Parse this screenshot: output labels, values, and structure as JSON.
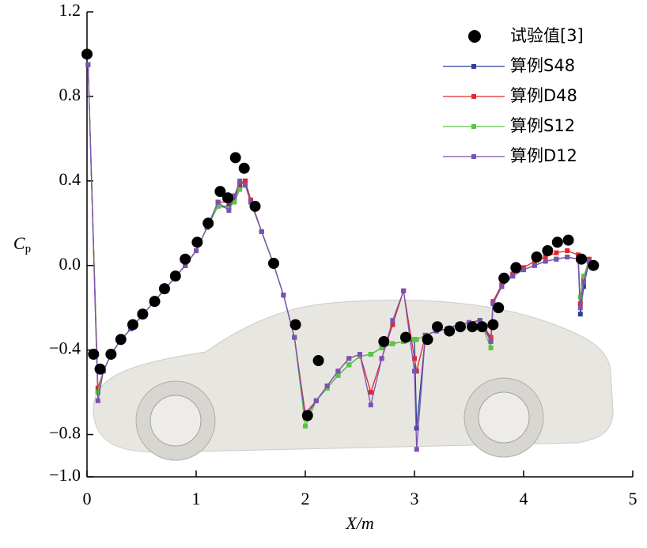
{
  "chart_data": {
    "type": "line",
    "xlabel": "X/m",
    "ylabel": {
      "text": "C",
      "subscript": "p"
    },
    "xlim": [
      0,
      5
    ],
    "xticks": [
      0,
      1,
      2,
      3,
      4,
      5
    ],
    "ylim": [
      -1.0,
      1.2
    ],
    "yticks": [
      {
        "value": -1.0,
        "label": "−1.0"
      },
      {
        "value": -0.8,
        "label": "−0.8"
      },
      {
        "value": -0.4,
        "label": "−0.4"
      },
      {
        "value": 0,
        "label": "0.0"
      },
      0.4,
      0.8,
      1.2
    ],
    "legend": "upper right",
    "experiment": {
      "name": "试验值[3]",
      "color": "#000000",
      "x": [
        0,
        0.06,
        0.12,
        0.22,
        0.31,
        0.42,
        0.51,
        0.62,
        0.71,
        0.81,
        0.9,
        1.01,
        1.11,
        1.22,
        1.29,
        1.36,
        1.44,
        1.54,
        1.71,
        1.91,
        2.02,
        2.12,
        2.72,
        2.92,
        3.12,
        3.21,
        3.32,
        3.42,
        3.53,
        3.62,
        3.72,
        3.77,
        3.82,
        3.93,
        4.12,
        4.22,
        4.31,
        4.41,
        4.53,
        4.64
      ],
      "values": [
        1.0,
        -0.42,
        -0.49,
        -0.42,
        -0.35,
        -0.28,
        -0.23,
        -0.17,
        -0.11,
        -0.05,
        0.03,
        0.11,
        0.2,
        0.35,
        0.32,
        0.51,
        0.46,
        0.28,
        0.01,
        -0.28,
        -0.71,
        -0.45,
        -0.36,
        -0.34,
        -0.35,
        -0.29,
        -0.31,
        -0.29,
        -0.29,
        -0.29,
        -0.28,
        -0.2,
        -0.06,
        -0.01,
        0.04,
        0.07,
        0.11,
        0.12,
        0.03,
        0.0
      ]
    },
    "x": [
      0.01,
      0.1,
      0.15,
      0.22,
      0.3,
      0.4,
      0.5,
      0.6,
      0.7,
      0.8,
      0.9,
      1.0,
      1.1,
      1.2,
      1.3,
      1.35,
      1.4,
      1.45,
      1.5,
      1.6,
      1.7,
      1.8,
      1.9,
      2.0,
      2.1,
      2.2,
      2.3,
      2.4,
      2.5,
      2.6,
      2.7,
      2.8,
      2.9,
      3.0,
      3.02,
      3.1,
      3.2,
      3.3,
      3.4,
      3.5,
      3.6,
      3.7,
      3.72,
      3.8,
      3.9,
      4.0,
      4.1,
      4.2,
      4.3,
      4.4,
      4.5,
      4.52,
      4.55,
      4.6,
      4.62
    ],
    "series": [
      {
        "name": "算例S48",
        "color": "#2b3f96",
        "values": [
          0.95,
          -0.6,
          -0.5,
          -0.42,
          -0.36,
          -0.3,
          -0.24,
          -0.18,
          -0.12,
          -0.06,
          0.0,
          0.07,
          0.18,
          0.28,
          0.28,
          0.31,
          0.38,
          0.4,
          0.31,
          0.16,
          0.02,
          -0.14,
          -0.34,
          -0.72,
          -0.64,
          -0.58,
          -0.52,
          -0.47,
          -0.43,
          -0.42,
          -0.39,
          -0.37,
          -0.36,
          -0.35,
          -0.77,
          -0.33,
          -0.31,
          -0.3,
          -0.28,
          -0.27,
          -0.26,
          -0.35,
          -0.18,
          -0.1,
          -0.05,
          -0.02,
          0.0,
          0.02,
          0.03,
          0.04,
          0.03,
          -0.23,
          -0.1,
          0.02,
          0.0
        ]
      },
      {
        "name": "算例D48",
        "color": "#e3262b",
        "values": [
          0.95,
          -0.58,
          -0.5,
          -0.42,
          -0.36,
          -0.3,
          -0.24,
          -0.18,
          -0.12,
          -0.06,
          0.0,
          0.07,
          0.18,
          0.3,
          0.3,
          0.33,
          0.39,
          0.4,
          0.31,
          0.16,
          0.02,
          -0.14,
          -0.34,
          -0.7,
          -0.64,
          -0.57,
          -0.5,
          -0.44,
          -0.42,
          -0.6,
          -0.44,
          -0.28,
          -0.12,
          -0.44,
          -0.5,
          -0.33,
          -0.31,
          -0.3,
          -0.28,
          -0.27,
          -0.26,
          -0.34,
          -0.17,
          -0.09,
          -0.04,
          -0.01,
          0.02,
          0.04,
          0.06,
          0.07,
          0.05,
          -0.18,
          -0.06,
          0.03,
          0.01
        ]
      },
      {
        "name": "算例S12",
        "color": "#5cc445",
        "values": [
          0.95,
          -0.6,
          -0.5,
          -0.42,
          -0.36,
          -0.3,
          -0.24,
          -0.18,
          -0.12,
          -0.06,
          0.0,
          0.07,
          0.18,
          0.28,
          0.27,
          0.3,
          0.36,
          0.38,
          0.3,
          0.16,
          0.02,
          -0.14,
          -0.34,
          -0.76,
          -0.64,
          -0.58,
          -0.52,
          -0.47,
          -0.43,
          -0.42,
          -0.39,
          -0.37,
          -0.36,
          -0.35,
          -0.35,
          -0.33,
          -0.31,
          -0.3,
          -0.28,
          -0.27,
          -0.26,
          -0.39,
          -0.18,
          -0.1,
          -0.05,
          -0.02,
          0.0,
          0.02,
          0.03,
          0.04,
          0.03,
          -0.15,
          -0.05,
          0.02,
          0.0
        ]
      },
      {
        "name": "算例D12",
        "color": "#7a52b4",
        "values": [
          0.95,
          -0.64,
          -0.5,
          -0.42,
          -0.36,
          -0.3,
          -0.24,
          -0.18,
          -0.12,
          -0.06,
          0.0,
          0.07,
          0.18,
          0.3,
          0.26,
          0.33,
          0.4,
          0.38,
          0.3,
          0.16,
          0.02,
          -0.14,
          -0.34,
          -0.72,
          -0.64,
          -0.57,
          -0.5,
          -0.44,
          -0.42,
          -0.66,
          -0.44,
          -0.26,
          -0.12,
          -0.5,
          -0.87,
          -0.33,
          -0.31,
          -0.3,
          -0.28,
          -0.27,
          -0.26,
          -0.36,
          -0.18,
          -0.1,
          -0.05,
          -0.02,
          0.0,
          0.02,
          0.03,
          0.04,
          0.03,
          -0.2,
          -0.08,
          0.02,
          0.0
        ]
      }
    ]
  }
}
